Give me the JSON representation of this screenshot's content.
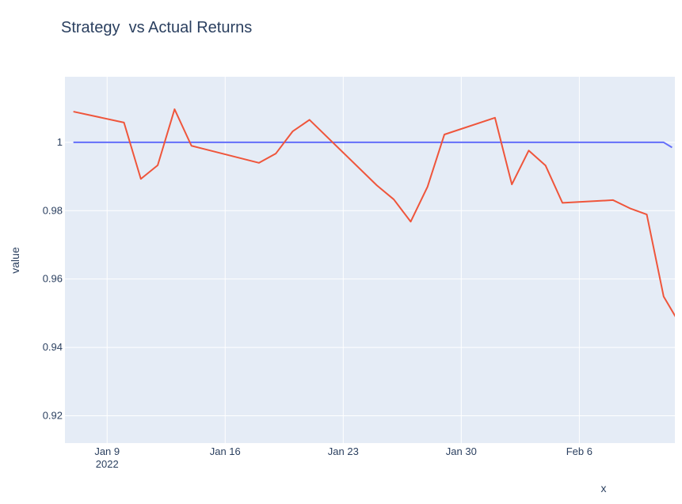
{
  "chart_data": {
    "type": "line",
    "title": "Strategy  vs Actual Returns",
    "xlabel": "x",
    "ylabel": "value",
    "x_axis_type": "date",
    "xlim": [
      "2022-01-06 12:00",
      "2022-02-11 16:00"
    ],
    "ylim": [
      0.912,
      1.0192
    ],
    "grid": true,
    "legend": "none",
    "background": "#e5ecf6",
    "x_ticks": [
      {
        "value": "2022-01-09",
        "label": "Jan 9",
        "sublabel": "2022"
      },
      {
        "value": "2022-01-16",
        "label": "Jan 16",
        "sublabel": ""
      },
      {
        "value": "2022-01-23",
        "label": "Jan 23",
        "sublabel": ""
      },
      {
        "value": "2022-01-30",
        "label": "Jan 30",
        "sublabel": ""
      },
      {
        "value": "2022-02-06",
        "label": "Feb 6",
        "sublabel": ""
      }
    ],
    "y_ticks": [
      {
        "value": 0.92,
        "label": "0.92"
      },
      {
        "value": 0.94,
        "label": "0.94"
      },
      {
        "value": 0.96,
        "label": "0.96"
      },
      {
        "value": 0.98,
        "label": "0.98"
      },
      {
        "value": 1.0,
        "label": "1"
      }
    ],
    "series": [
      {
        "color": "#636efa",
        "x": [
          "2022-01-07",
          "2022-02-11",
          "2022-02-11 12:00"
        ],
        "values": [
          1.0,
          1.0,
          0.9985
        ]
      },
      {
        "color": "#ef553b",
        "x": [
          "2022-01-07",
          "2022-01-10",
          "2022-01-11",
          "2022-01-12",
          "2022-01-13",
          "2022-01-14",
          "2022-01-18",
          "2022-01-19",
          "2022-01-20",
          "2022-01-21",
          "2022-01-25",
          "2022-01-26",
          "2022-01-27",
          "2022-01-28",
          "2022-01-29",
          "2022-02-01",
          "2022-02-02",
          "2022-02-03",
          "2022-02-04",
          "2022-02-05",
          "2022-02-08",
          "2022-02-09",
          "2022-02-10",
          "2022-02-11",
          "2022-02-12",
          "2022-02-12 12:00"
        ],
        "values": [
          1.009,
          1.0058,
          0.9893,
          0.9933,
          1.0097,
          0.999,
          0.994,
          0.9967,
          1.0032,
          1.0066,
          0.9874,
          0.9833,
          0.9768,
          0.987,
          1.0023,
          1.0072,
          0.9877,
          0.9976,
          0.9932,
          0.9823,
          0.9831,
          0.9807,
          0.9789,
          0.9549,
          0.9465,
          0.9445
        ]
      }
    ]
  }
}
